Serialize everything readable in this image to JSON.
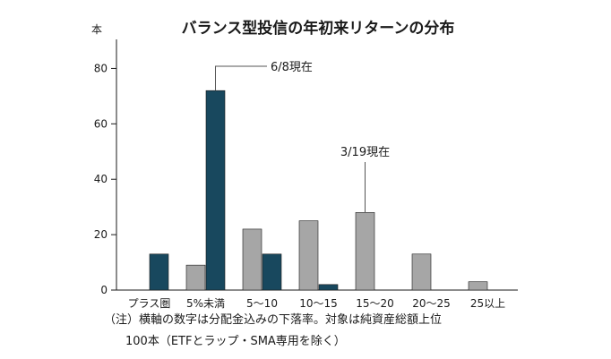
{
  "chart_data": {
    "type": "bar",
    "title": "バランス型投信の年初来リターンの分布",
    "ylabel": "本",
    "xlabel": "",
    "ylim": [
      0,
      90
    ],
    "yticks": [
      0,
      20,
      40,
      60,
      80
    ],
    "categories": [
      "プラス圏",
      "5%未満",
      "5～10",
      "10～15",
      "15～20",
      "20～25",
      "25以上"
    ],
    "series": [
      {
        "name": "3/19現在",
        "color": "#a6a6a6",
        "values": [
          0,
          9,
          22,
          25,
          28,
          13,
          3
        ]
      },
      {
        "name": "6/8現在",
        "color": "#18485e",
        "values": [
          13,
          72,
          13,
          2,
          0,
          0,
          0
        ]
      }
    ],
    "annotations": [
      {
        "text": "6/8現在",
        "series": 1,
        "category": 1
      },
      {
        "text": "3/19現在",
        "series": 0,
        "category": 4
      }
    ],
    "note": [
      "（注）横軸の数字は分配金込みの下落率。対象は純資産総額上位",
      "100本（ETFとラップ・SMA専用を除く）"
    ],
    "grid": false,
    "legend": "none"
  }
}
